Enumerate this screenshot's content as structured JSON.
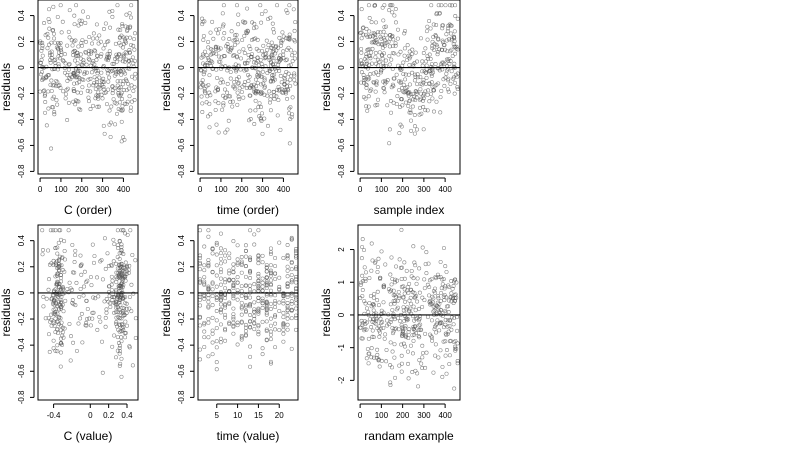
{
  "chart_data": [
    {
      "type": "scatter",
      "xlabel": "C (order)",
      "ylabel": "residuals",
      "xlim": [
        -10,
        470
      ],
      "ylim": [
        -0.82,
        0.52
      ],
      "xticks": [
        0,
        100,
        200,
        300,
        400
      ],
      "yticks": [
        -0.8,
        -0.6,
        -0.4,
        -0.2,
        0.0,
        0.2,
        0.4
      ],
      "yticks_rotated": true,
      "reference_line_y": 0,
      "n_points": 450,
      "pattern": "uniform",
      "y_spread": 0.22,
      "y_min_observed": -0.8,
      "y_max_observed": 0.48,
      "grid": false
    },
    {
      "type": "scatter",
      "xlabel": "time (order)",
      "ylabel": "residuals",
      "xlim": [
        -10,
        470
      ],
      "ylim": [
        -0.82,
        0.52
      ],
      "xticks": [
        0,
        100,
        200,
        300,
        400
      ],
      "yticks": [
        -0.8,
        -0.6,
        -0.4,
        -0.2,
        0.0,
        0.2,
        0.4
      ],
      "yticks_rotated": true,
      "reference_line_y": 0,
      "n_points": 450,
      "pattern": "uniform",
      "y_spread": 0.22,
      "y_min_observed": -0.8,
      "y_max_observed": 0.48,
      "grid": false
    },
    {
      "type": "scatter",
      "xlabel": "sample index",
      "ylabel": "residuals",
      "xlim": [
        -10,
        470
      ],
      "ylim": [
        -0.82,
        0.52
      ],
      "xticks": [
        0,
        100,
        200,
        300,
        400
      ],
      "yticks": [
        -0.8,
        -0.6,
        -0.4,
        -0.2,
        0.0,
        0.2,
        0.4
      ],
      "yticks_rotated": true,
      "reference_line_y": 0,
      "n_points": 450,
      "pattern": "wave",
      "y_spread": 0.2,
      "y_min_observed": -0.8,
      "y_max_observed": 0.48,
      "grid": false
    },
    {
      "type": "scatter",
      "xlabel": "C (value)",
      "ylabel": "residuals",
      "xlim": [
        -0.57,
        0.52
      ],
      "ylim": [
        -0.82,
        0.52
      ],
      "xticks": [
        -0.4,
        0.0,
        0.2,
        0.4
      ],
      "yticks": [
        -0.8,
        -0.6,
        -0.4,
        -0.2,
        0.0,
        0.2,
        0.4
      ],
      "yticks_rotated": true,
      "reference_line_y": 0,
      "n_points": 450,
      "pattern": "clustered",
      "x_cluster_centers": [
        -0.35,
        0.33
      ],
      "y_spread": 0.22,
      "y_min_observed": -0.8,
      "y_max_observed": 0.48,
      "grid": false
    },
    {
      "type": "scatter",
      "xlabel": "time (value)",
      "ylabel": "residuals",
      "xlim": [
        0.5,
        24.5
      ],
      "ylim": [
        -0.82,
        0.52
      ],
      "xticks": [
        5,
        10,
        15,
        20
      ],
      "yticks": [
        -0.8,
        -0.6,
        -0.4,
        -0.2,
        0.0,
        0.2,
        0.4
      ],
      "yticks_rotated": true,
      "reference_line_y": 0,
      "n_points": 450,
      "pattern": "discrete",
      "x_levels": [
        1,
        2,
        3,
        4,
        5,
        6,
        7,
        8,
        9,
        10,
        11,
        12,
        13,
        14,
        15,
        16,
        17,
        18,
        19,
        20,
        21,
        22,
        23,
        24
      ],
      "y_spread": 0.22,
      "y_min_observed": -0.8,
      "y_max_observed": 0.48,
      "grid": false
    },
    {
      "type": "scatter",
      "xlabel": "randam example",
      "ylabel": "residuals",
      "xlim": [
        -10,
        470
      ],
      "ylim": [
        -2.6,
        2.75
      ],
      "xticks": [
        0,
        100,
        200,
        300,
        400
      ],
      "yticks": [
        -2,
        -1,
        0,
        1,
        2
      ],
      "yticks_rotated": true,
      "reference_line_y": 0,
      "n_points": 450,
      "pattern": "uniform",
      "y_spread": 0.9,
      "y_min_observed": -2.5,
      "y_max_observed": 2.6,
      "grid": false
    }
  ]
}
